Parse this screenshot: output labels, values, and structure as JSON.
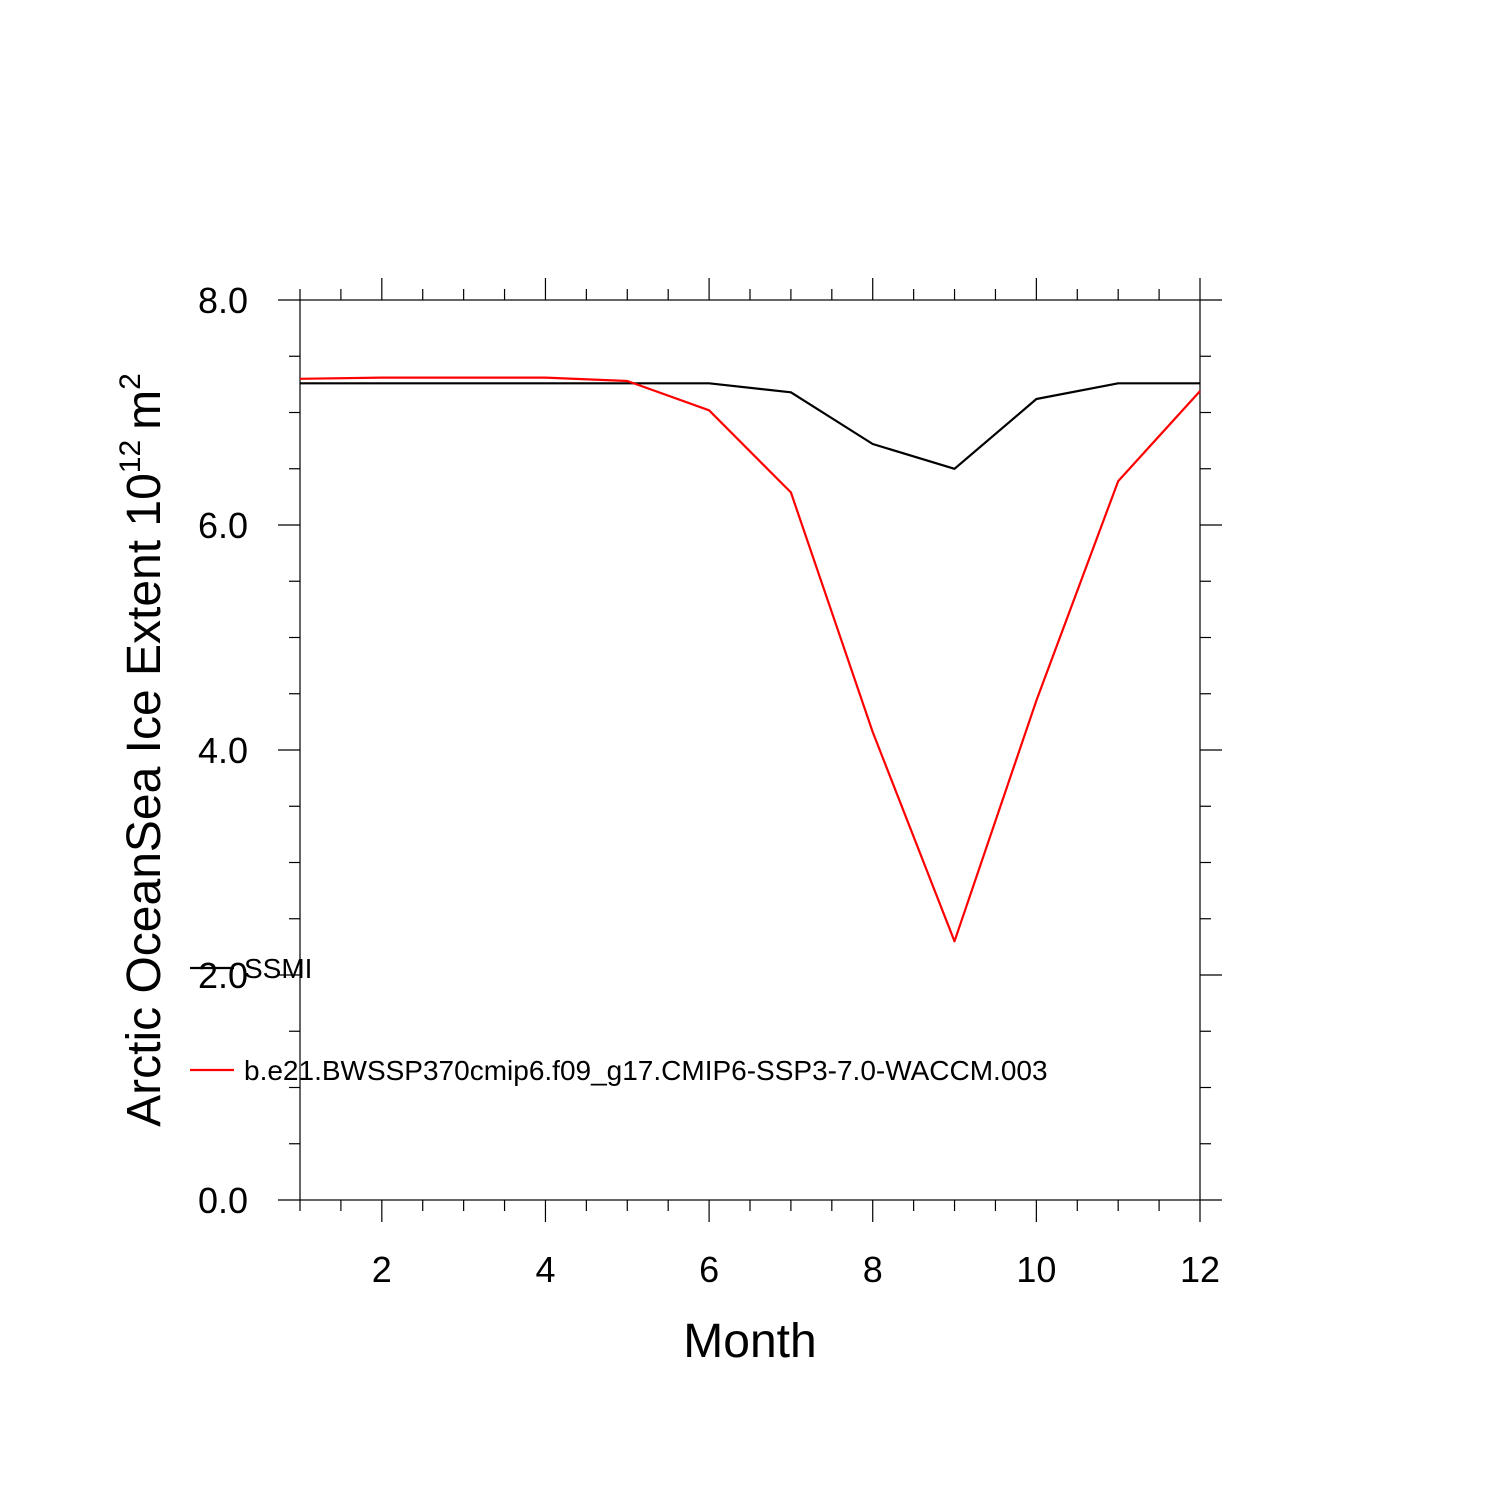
{
  "chart_data": {
    "type": "line",
    "xlabel": "Month",
    "ylabel": {
      "main": "Arctic OceanSea Ice Extent 10",
      "exponent": "12",
      "unit": "m",
      "unit_exponent": "2"
    },
    "xlim": [
      1,
      12
    ],
    "ylim": [
      0,
      8
    ],
    "x_ticks": [
      2,
      4,
      6,
      8,
      10,
      12
    ],
    "x_tick_labels": [
      "2",
      "4",
      "6",
      "8",
      "10",
      "12"
    ],
    "y_ticks": [
      0,
      2,
      4,
      6,
      8
    ],
    "y_tick_labels": [
      "0.0",
      "2.0",
      "4.0",
      "6.0",
      "8.0"
    ],
    "x_minor_step": 0.5,
    "y_minor_step": 0.5,
    "grid": false,
    "legend_position": "lower-left",
    "x": [
      1,
      2,
      3,
      4,
      5,
      6,
      7,
      8,
      9,
      10,
      11,
      12
    ],
    "series": [
      {
        "name": "SSMI",
        "color": "#000000",
        "values": [
          7.26,
          7.26,
          7.26,
          7.26,
          7.26,
          7.26,
          7.18,
          6.72,
          6.5,
          7.12,
          7.26,
          7.26
        ]
      },
      {
        "name": "b.e21.BWSSP370cmip6.f09_g17.CMIP6-SSP3-7.0-WACCM.003",
        "color": "#ff0000",
        "values": [
          7.3,
          7.31,
          7.31,
          7.31,
          7.28,
          7.02,
          6.29,
          4.16,
          2.3,
          4.44,
          6.39,
          7.19
        ]
      }
    ]
  }
}
